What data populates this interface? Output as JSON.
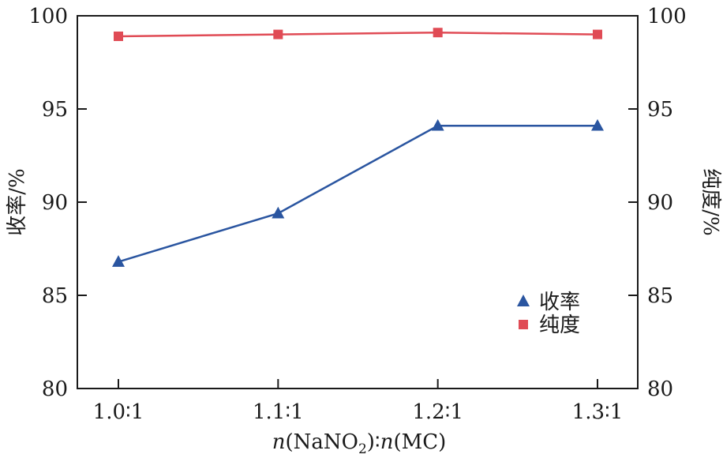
{
  "chart_data": {
    "type": "line",
    "categories": [
      "1.0∶1",
      "1.1∶1",
      "1.2∶1",
      "1.3∶1"
    ],
    "xlabel": {
      "prefix": "n",
      "open": "(NaNO",
      "sub": "2",
      "mid": ")∶",
      "prefix2": "n",
      "close": "(MC)"
    },
    "ylabel_left": "收率/%",
    "ylabel_right": "纯度/%",
    "ylim_left": [
      80,
      100
    ],
    "ylim_right": [
      80,
      100
    ],
    "yticks_left": [
      "80",
      "85",
      "90",
      "95",
      "100"
    ],
    "yticks_right": [
      "80",
      "85",
      "90",
      "95",
      "100"
    ],
    "grid": false,
    "legend_position": "lower-right",
    "series": [
      {
        "name": "收率",
        "axis": "left",
        "marker": "triangle",
        "color": "#2a55a0",
        "values": [
          86.8,
          89.4,
          94.1,
          94.1
        ]
      },
      {
        "name": "纯度",
        "axis": "right",
        "marker": "square",
        "color": "#e04b55",
        "values": [
          98.9,
          99.0,
          99.1,
          99.0
        ]
      }
    ]
  }
}
